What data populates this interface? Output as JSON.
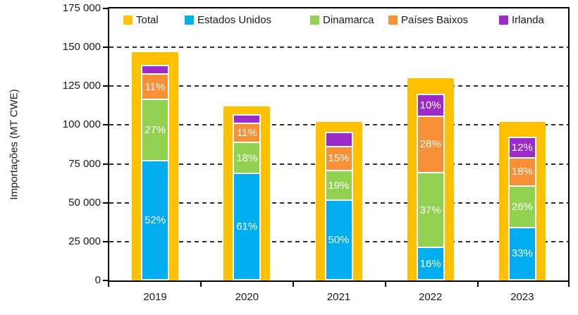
{
  "chart_data": {
    "type": "bar",
    "stacked": true,
    "title": "",
    "ylabel": "Importações (MT CWE)",
    "xlabel": "",
    "categories": [
      "2019",
      "2020",
      "2021",
      "2022",
      "2023"
    ],
    "ylim": [
      0,
      175000
    ],
    "y_ticks": [
      {
        "value": 0,
        "label": "0"
      },
      {
        "value": 25000,
        "label": "25 000"
      },
      {
        "value": 50000,
        "label": "50 000"
      },
      {
        "value": 75000,
        "label": "75 000"
      },
      {
        "value": 100000,
        "label": "100 000"
      },
      {
        "value": 125000,
        "label": "125 000"
      },
      {
        "value": 150000,
        "label": "150 000"
      },
      {
        "value": 175000,
        "label": "175 000"
      }
    ],
    "gridline_values": [
      25000,
      50000,
      75000,
      100000,
      125000,
      150000
    ],
    "grid_style": "horizontal-dashed",
    "legend_position": "top-inside",
    "axis_color": "#000000",
    "grid_color": "#2e2e2e",
    "total_series": {
      "name": "Total",
      "color": "#FFC000",
      "values": [
        147000,
        112000,
        102000,
        130000,
        102000
      ]
    },
    "series": [
      {
        "name": "Estados Unidos",
        "color": "#00AEEF",
        "pct": [
          52,
          61,
          50,
          16,
          33
        ],
        "labels": [
          "52%",
          "61%",
          "50%",
          "16%",
          "33%"
        ]
      },
      {
        "name": "Dinamarca",
        "color": "#92D050",
        "pct": [
          27,
          18,
          19,
          37,
          26
        ],
        "labels": [
          "27%",
          "18%",
          "19%",
          "37%",
          "26%"
        ]
      },
      {
        "name": "Países Baixos",
        "color": "#F89038",
        "pct": [
          11,
          11,
          15,
          28,
          18
        ],
        "labels": [
          "11%",
          "11%",
          "15%",
          "28%",
          "18%"
        ]
      },
      {
        "name": "Irlanda",
        "color": "#9C2BC8",
        "pct": [
          3,
          4,
          8,
          10,
          12
        ],
        "labels": [
          "",
          "",
          "",
          "10%",
          "12%"
        ]
      }
    ],
    "legend_labels": [
      "Total",
      "Estados Unidos",
      "Dinamarca",
      "Países Baixos",
      "Irlanda"
    ]
  }
}
